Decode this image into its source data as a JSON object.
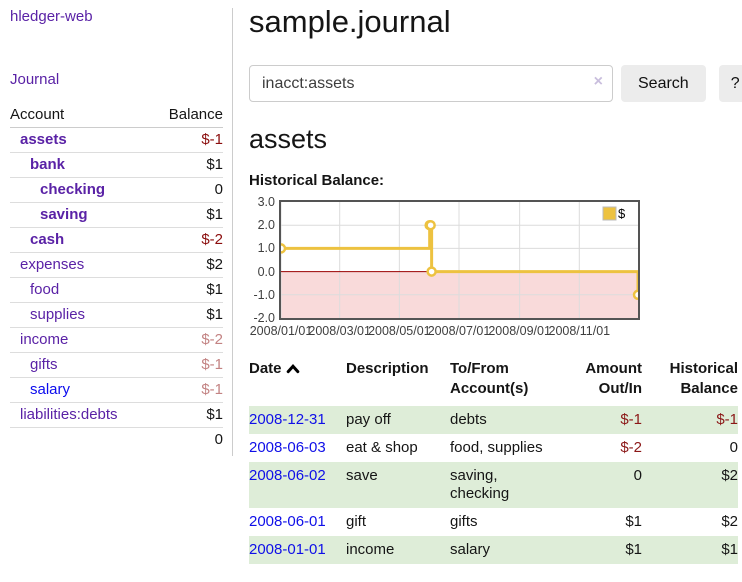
{
  "brand": "hledger-web",
  "nav": {
    "journal": "Journal"
  },
  "sidebar": {
    "header": {
      "account": "Account",
      "balance": "Balance"
    },
    "rows": [
      {
        "name": "assets",
        "balance": "$-1",
        "depth": 1,
        "emph": true,
        "tone": "neg-strong"
      },
      {
        "name": "bank",
        "balance": "$1",
        "depth": 2,
        "emph": true,
        "tone": "pos"
      },
      {
        "name": "checking",
        "balance": "0",
        "depth": 3,
        "emph": true,
        "tone": "pos"
      },
      {
        "name": "saving",
        "balance": "$1",
        "depth": 3,
        "emph": true,
        "tone": "pos"
      },
      {
        "name": "cash",
        "balance": "$-2",
        "depth": 2,
        "emph": true,
        "tone": "neg-strong"
      },
      {
        "name": "expenses",
        "balance": "$2",
        "depth": 1,
        "emph": false,
        "tone": "pos"
      },
      {
        "name": "food",
        "balance": "$1",
        "depth": 2,
        "emph": false,
        "tone": "pos"
      },
      {
        "name": "supplies",
        "balance": "$1",
        "depth": 2,
        "emph": false,
        "tone": "pos"
      },
      {
        "name": "income",
        "balance": "$-2",
        "depth": 1,
        "emph": false,
        "tone": "neg-soft"
      },
      {
        "name": "gifts",
        "balance": "$-1",
        "depth": 2,
        "emph": false,
        "tone": "neg-soft"
      },
      {
        "name": "salary",
        "balance": "$-1",
        "depth": 2,
        "emph": false,
        "tone": "neg-soft",
        "link_tone": "blue"
      },
      {
        "name": "liabilities:debts",
        "balance": "$1",
        "depth": 1,
        "emph": false,
        "tone": "pos"
      }
    ],
    "total": "0"
  },
  "header": {
    "title": "sample.journal"
  },
  "search": {
    "query": "inacct:assets",
    "clear_label": "×",
    "button": "Search",
    "help_button": "?"
  },
  "account_page": {
    "heading": "assets",
    "chart_label": "Historical Balance:"
  },
  "chart_data": {
    "type": "line",
    "step": true,
    "title": "Historical Balance:",
    "series": [
      {
        "name": "$",
        "color": "#edc240",
        "points": [
          [
            "2008-01-01",
            1
          ],
          [
            "2008-06-01",
            2
          ],
          [
            "2008-06-02",
            2
          ],
          [
            "2008-06-03",
            0
          ],
          [
            "2008-12-31",
            -1
          ]
        ]
      }
    ],
    "xlim": [
      "2008-01-01",
      "2008-12-31"
    ],
    "ylim": [
      -2,
      3
    ],
    "yticks": [
      "3.0",
      "2.0",
      "1.0",
      "0.0",
      "-1.0",
      "-2.0"
    ],
    "xticks": [
      "2008/01/01",
      "2008/03/01",
      "2008/05/01",
      "2008/07/01",
      "2008/09/01",
      "2008/11/01"
    ],
    "grid": true,
    "gridline_color": "#dcdcdc",
    "negative_region_fill": "#f9dada",
    "zero_line_color": "#990000",
    "legend": [
      "$"
    ],
    "legend_position": "top-right"
  },
  "register": {
    "columns": [
      {
        "line1": "Date",
        "line2": ""
      },
      {
        "line1": "Description",
        "line2": ""
      },
      {
        "line1": "To/From",
        "line2": "Account(s)"
      },
      {
        "line1": "Amount",
        "line2": "Out/In"
      },
      {
        "line1": "Historical",
        "line2": "Balance"
      }
    ],
    "rows": [
      {
        "date": "2008-12-31",
        "description": "pay off",
        "accounts": "debts",
        "amount": "$-1",
        "amount_tone": "neg",
        "balance": "$-1",
        "balance_tone": "neg"
      },
      {
        "date": "2008-06-03",
        "description": "eat & shop",
        "accounts": "food, supplies",
        "amount": "$-2",
        "amount_tone": "neg",
        "balance": "0",
        "balance_tone": "pos"
      },
      {
        "date": "2008-06-02",
        "description": "save",
        "accounts": "saving, checking",
        "amount": "0",
        "amount_tone": "pos",
        "balance": "$2",
        "balance_tone": "pos"
      },
      {
        "date": "2008-06-01",
        "description": "gift",
        "accounts": "gifts",
        "amount": "$1",
        "amount_tone": "pos",
        "balance": "$2",
        "balance_tone": "pos"
      },
      {
        "date": "2008-01-01",
        "description": "income",
        "accounts": "salary",
        "amount": "$1",
        "amount_tone": "pos",
        "balance": "$1",
        "balance_tone": "pos"
      }
    ]
  },
  "colors": {
    "link_purple": "#5a22a6",
    "link_blue": "#0f0fe8",
    "negative_strong": "#8b0d0d",
    "negative_soft": "#c38383",
    "register_negative": "#8b1717",
    "row_stripe_green": "#deedd8",
    "chart_line_gold": "#edc240",
    "chart_negative_fill": "#f9dada",
    "chart_zero_line": "#990000",
    "button_gray": "#ececec"
  }
}
